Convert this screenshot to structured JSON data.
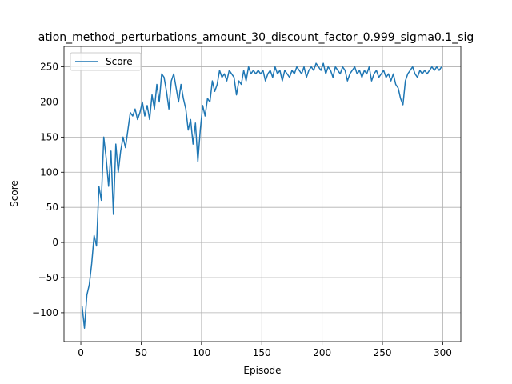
{
  "chart_data": {
    "type": "line",
    "title": "ation_method_perturbations_amount_30_discount_factor_0.999_sigma0.1_sig",
    "x_label": "Episode",
    "y_label": "Score",
    "x": [
      1,
      3,
      5,
      7,
      9,
      11,
      13,
      15,
      17,
      19,
      21,
      23,
      25,
      27,
      29,
      31,
      33,
      35,
      37,
      39,
      41,
      43,
      45,
      47,
      49,
      51,
      53,
      55,
      57,
      59,
      61,
      63,
      65,
      67,
      69,
      71,
      73,
      75,
      77,
      79,
      81,
      83,
      85,
      87,
      89,
      91,
      93,
      95,
      97,
      99,
      101,
      103,
      105,
      107,
      109,
      111,
      113,
      115,
      117,
      119,
      121,
      123,
      125,
      127,
      129,
      131,
      133,
      135,
      137,
      139,
      141,
      143,
      145,
      147,
      149,
      151,
      153,
      155,
      157,
      159,
      161,
      163,
      165,
      167,
      169,
      171,
      173,
      175,
      177,
      179,
      181,
      183,
      185,
      187,
      189,
      191,
      193,
      195,
      197,
      199,
      201,
      203,
      205,
      207,
      209,
      211,
      213,
      215,
      217,
      219,
      221,
      223,
      225,
      227,
      229,
      231,
      233,
      235,
      237,
      239,
      241,
      243,
      245,
      247,
      249,
      251,
      253,
      255,
      257,
      259,
      261,
      263,
      265,
      267,
      269,
      271,
      273,
      275,
      277,
      279,
      281,
      283,
      285,
      287,
      289,
      291,
      293,
      295,
      297,
      299
    ],
    "series": [
      {
        "name": "Score",
        "color": "#1f77b4",
        "values": [
          -90,
          -122,
          -75,
          -60,
          -30,
          10,
          -5,
          80,
          60,
          150,
          120,
          80,
          130,
          40,
          140,
          100,
          130,
          150,
          135,
          160,
          185,
          180,
          190,
          175,
          185,
          200,
          180,
          195,
          175,
          210,
          190,
          225,
          200,
          240,
          235,
          215,
          190,
          230,
          240,
          220,
          200,
          225,
          205,
          190,
          160,
          175,
          140,
          170,
          115,
          160,
          195,
          180,
          205,
          200,
          230,
          215,
          225,
          245,
          235,
          240,
          230,
          245,
          240,
          235,
          210,
          230,
          225,
          245,
          230,
          250,
          240,
          245,
          240,
          245,
          240,
          245,
          230,
          240,
          245,
          235,
          250,
          240,
          245,
          230,
          245,
          240,
          235,
          245,
          240,
          250,
          245,
          240,
          250,
          235,
          245,
          250,
          245,
          255,
          250,
          245,
          255,
          240,
          250,
          245,
          235,
          250,
          245,
          240,
          250,
          245,
          230,
          240,
          245,
          250,
          240,
          245,
          235,
          245,
          240,
          250,
          230,
          240,
          245,
          235,
          240,
          245,
          235,
          240,
          230,
          240,
          225,
          220,
          205,
          196,
          230,
          240,
          245,
          250,
          240,
          235,
          245,
          240,
          245,
          240,
          245,
          250,
          245,
          250,
          245,
          250
        ]
      }
    ],
    "xlim": [
      -13.95,
      314.95
    ],
    "ylim": [
      -141.1,
      279.1
    ],
    "xticks": [
      0,
      50,
      100,
      150,
      200,
      250,
      300
    ],
    "yticks": [
      {
        "value": -100,
        "label": "−100"
      },
      {
        "value": -50,
        "label": "−50"
      },
      0,
      50,
      100,
      150,
      200,
      250
    ],
    "grid": true,
    "legend": "upper left"
  }
}
